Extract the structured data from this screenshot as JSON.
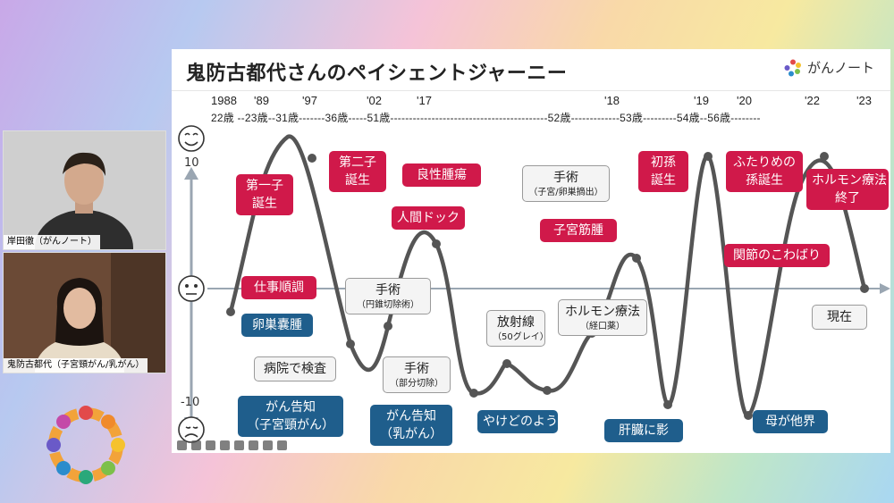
{
  "slide": {
    "title": "鬼防古都代さんのペイシェントジャーニー",
    "brand": "がんノート",
    "years": [
      "1988",
      "'89",
      "'97",
      "'02",
      "'17",
      "'18",
      "'19",
      "'20",
      "'22",
      "'23"
    ],
    "ages_line": "22歳 --23歳--31歳-------36歳-----51歳------------------------------------------52歳-------------53歳---------54歳--56歳--------",
    "axis_top": "10",
    "axis_bottom": "-10",
    "events": {
      "e1": "仕事順調",
      "e2": "卵巣嚢腫",
      "e3": "第一子\n誕生",
      "e4": "第二子\n誕生",
      "e5": "病院で検査",
      "e6": "がん告知\n（子宮頸がん）",
      "e7": "手術",
      "e7s": "（円錐切除術）",
      "e8": "良性腫瘍",
      "e9": "人間ドック",
      "e10": "手術",
      "e10s": "（部分切除）",
      "e11": "がん告知\n（乳がん）",
      "e12": "放射線",
      "e12s": "（50グレイ）",
      "e13": "やけどのよう",
      "e14": "手術",
      "e14s": "（子宮/卵巣摘出）",
      "e15": "子宮筋腫",
      "e16": "ホルモン療法",
      "e16s": "（経口薬）",
      "e17": "初孫\n誕生",
      "e18": "肝臓に影",
      "e19": "ふたりめの\n孫誕生",
      "e20": "関節のこわばり",
      "e21": "母が他界",
      "e22": "ホルモン療法\n終了",
      "e23": "現在"
    }
  },
  "participants": [
    {
      "name": "岸田徹（がんノート）"
    },
    {
      "name": "鬼防古都代（子宮頸がん/乳がん）"
    }
  ],
  "colors": {
    "red": "#d0194a",
    "blue": "#1f5e8c",
    "curve": "#555555"
  }
}
